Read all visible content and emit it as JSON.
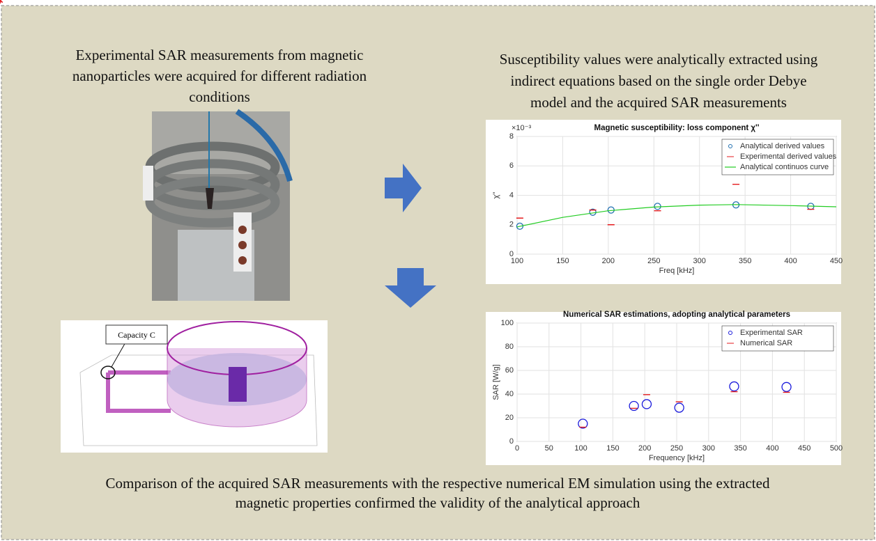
{
  "captions": {
    "left": [
      "Experimental SAR measurements from magnetic",
      "nanoparticles were acquired for different radiation",
      "conditions"
    ],
    "right": [
      "Susceptibility values were analytically extracted using",
      "indirect equations based on the single order Debye",
      "model and the acquired SAR measurements"
    ],
    "bottom": [
      "Comparison of the acquired SAR measurements with the respective numerical EM simulation using the extracted",
      "magnetic properties confirmed the validity of the analytical approach"
    ]
  },
  "diagram": {
    "label": "Capacity C"
  },
  "chart_data": [
    {
      "type": "scatter",
      "title": "Magnetic susceptibility: loss component χ''",
      "x_label": "Freq [kHz]",
      "y_label": "χ''",
      "y_multiplier": "×10⁻³",
      "xlim": [
        100,
        450
      ],
      "xticks": [
        100,
        150,
        200,
        250,
        300,
        350,
        400,
        450
      ],
      "ylim": [
        0,
        8
      ],
      "yticks": [
        0,
        2,
        4,
        6,
        8
      ],
      "grid": true,
      "legend": "upper-right",
      "series": [
        {
          "name": "Analytical derived values",
          "color": "#1f6fb0",
          "marker": "circle",
          "x": [
            103,
            183,
            203,
            254,
            340,
            422
          ],
          "values": [
            1.9,
            2.85,
            3.0,
            3.25,
            3.35,
            3.25
          ]
        },
        {
          "name": "Experimental derived values",
          "color": "#e41a1c",
          "marker": "star",
          "x": [
            103,
            183,
            203,
            254,
            340,
            422
          ],
          "values": [
            2.45,
            3.0,
            2.0,
            2.95,
            4.75,
            3.05
          ]
        },
        {
          "name": "Analytical continuos curve",
          "color": "#22cc22",
          "marker": "line",
          "x": [
            100,
            150,
            200,
            250,
            300,
            340,
            400,
            450
          ],
          "values": [
            1.85,
            2.5,
            2.95,
            3.2,
            3.33,
            3.37,
            3.3,
            3.22
          ]
        }
      ]
    },
    {
      "type": "scatter",
      "title": "Numerical SAR estimations, adopting analytical parameters",
      "x_label": "Frequency [kHz]",
      "y_label": "SAR [W/g]",
      "xlim": [
        0,
        500
      ],
      "xticks": [
        0,
        50,
        100,
        150,
        200,
        250,
        300,
        350,
        400,
        450,
        500
      ],
      "ylim": [
        0,
        100
      ],
      "yticks": [
        0,
        20,
        40,
        60,
        80,
        100
      ],
      "grid": true,
      "legend": "upper-right",
      "series": [
        {
          "name": "Experimental SAR",
          "color": "#1a1adc",
          "marker": "circle-large",
          "x": [
            103,
            183,
            203,
            254,
            340,
            422
          ],
          "values": [
            15,
            30,
            31.5,
            28.5,
            46.5,
            46
          ]
        },
        {
          "name": "Numerical SAR",
          "color": "#e41a1c",
          "marker": "star",
          "x": [
            103,
            183,
            203,
            254,
            340,
            422
          ],
          "values": [
            12,
            28,
            39.5,
            33.5,
            42,
            41.5
          ]
        }
      ]
    }
  ]
}
